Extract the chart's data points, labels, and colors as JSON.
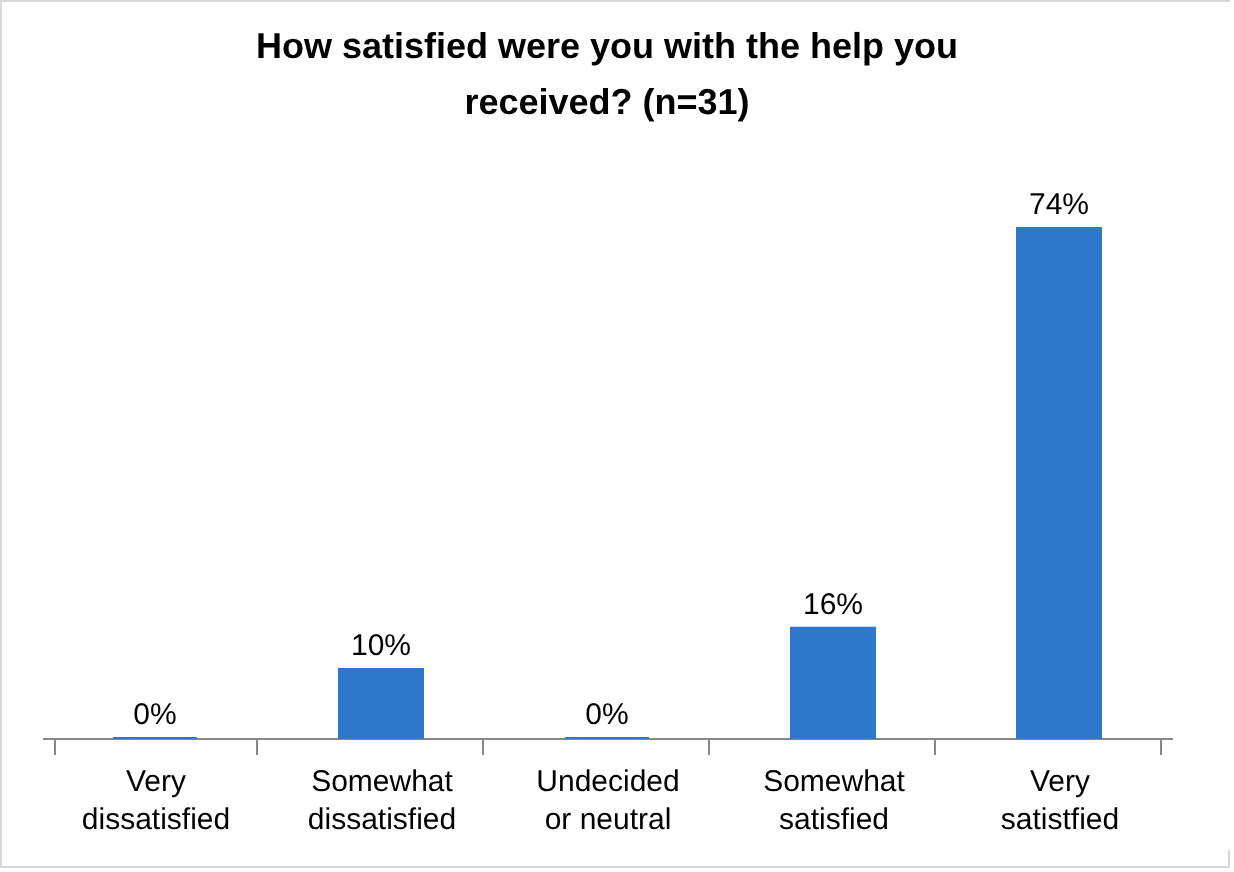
{
  "chart_data": {
    "type": "bar",
    "title": "How satisfied were you with the help you received? (n=31)",
    "categories": [
      "Very dissatisfied",
      "Somewhat dissatisfied",
      "Undecided or neutral",
      "Somewhat satisfied",
      "Very satistfied"
    ],
    "values": [
      0,
      10,
      0,
      16,
      74
    ],
    "value_labels": [
      "0%",
      "10%",
      "0%",
      "16%",
      "74%"
    ],
    "color": "#2e78cc",
    "grid": false
  }
}
